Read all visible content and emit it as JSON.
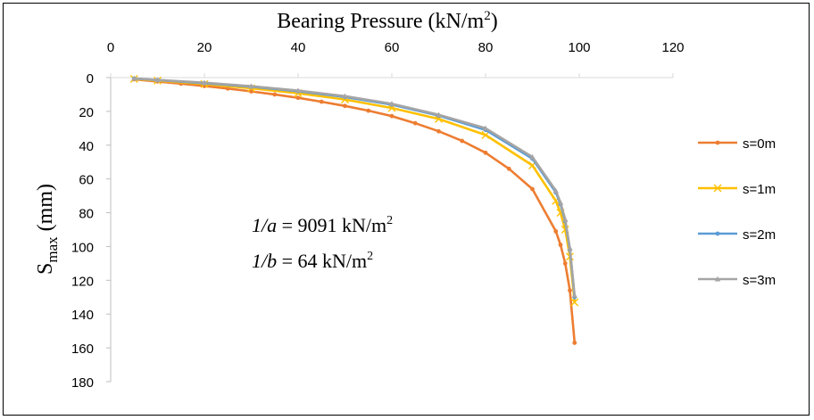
{
  "chart_data": {
    "type": "line",
    "title": "",
    "xlabel_parts": [
      "Bearing Pressure (kN/m",
      "2",
      ")"
    ],
    "ylabel_parts": [
      "S",
      "max",
      " (mm)"
    ],
    "x_axis_position": "top",
    "y_axis_inverted": true,
    "xlim": [
      0,
      120
    ],
    "ylim": [
      0,
      180
    ],
    "x_ticks": [
      0,
      20,
      40,
      60,
      80,
      100,
      120
    ],
    "y_ticks": [
      0,
      20,
      40,
      60,
      80,
      100,
      120,
      140,
      160,
      180
    ],
    "x_tick_labels": [
      "0",
      "20",
      "40",
      "60",
      "80",
      "100",
      "120"
    ],
    "y_tick_labels": [
      "0",
      "20",
      "40",
      "60",
      "80",
      "100",
      "120",
      "140",
      "160",
      "180"
    ],
    "grid": false,
    "legend_position": "right",
    "series": [
      {
        "name": "s=0m",
        "color": "#ED7D31",
        "marker": "dot",
        "x": [
          5,
          10,
          15,
          20,
          25,
          30,
          35,
          40,
          45,
          50,
          55,
          60,
          65,
          70,
          75,
          80,
          85,
          90,
          95,
          96,
          97,
          98,
          99
        ],
        "y": [
          1.0,
          2.3,
          3.6,
          5.0,
          6.5,
          8.2,
          10.0,
          12.0,
          14.3,
          16.8,
          19.6,
          22.8,
          27.0,
          31.8,
          37.5,
          44.5,
          54.0,
          66.0,
          91.0,
          99.0,
          110.0,
          126.0,
          157.0
        ]
      },
      {
        "name": "s=1m",
        "color": "#FFC000",
        "marker": "x",
        "x": [
          5,
          10,
          20,
          30,
          40,
          50,
          60,
          70,
          80,
          90,
          95,
          96,
          97,
          98,
          99
        ],
        "y": [
          0.8,
          1.8,
          3.8,
          6.3,
          9.3,
          13.0,
          18.0,
          24.5,
          34.0,
          52.0,
          73.0,
          80.0,
          90.0,
          106.0,
          133.0
        ]
      },
      {
        "name": "s=2m",
        "color": "#5B9BD5",
        "marker": "dot",
        "x": [
          5,
          10,
          20,
          30,
          40,
          50,
          60,
          70,
          80,
          90,
          95,
          96,
          97,
          98,
          99
        ],
        "y": [
          0.6,
          1.5,
          3.3,
          5.4,
          8.1,
          11.5,
          16.0,
          22.5,
          31.0,
          48.0,
          68.0,
          75.0,
          85.0,
          102.0,
          130.0
        ]
      },
      {
        "name": "s=3m",
        "color": "#A5A5A5",
        "marker": "triangle",
        "x": [
          5,
          10,
          20,
          30,
          40,
          50,
          60,
          70,
          80,
          90,
          95,
          96,
          97,
          98,
          99
        ],
        "y": [
          0.5,
          1.4,
          3.0,
          5.1,
          7.7,
          11.0,
          15.5,
          22.0,
          30.0,
          47.0,
          67.0,
          74.0,
          84.0,
          101.0,
          129.0
        ]
      }
    ],
    "annotations": [
      {
        "var": "1/a",
        "value": " = 9091 kN/m",
        "sup": "2"
      },
      {
        "var": "1/b",
        "value": " = 64 kN/m",
        "sup": "2"
      }
    ]
  }
}
